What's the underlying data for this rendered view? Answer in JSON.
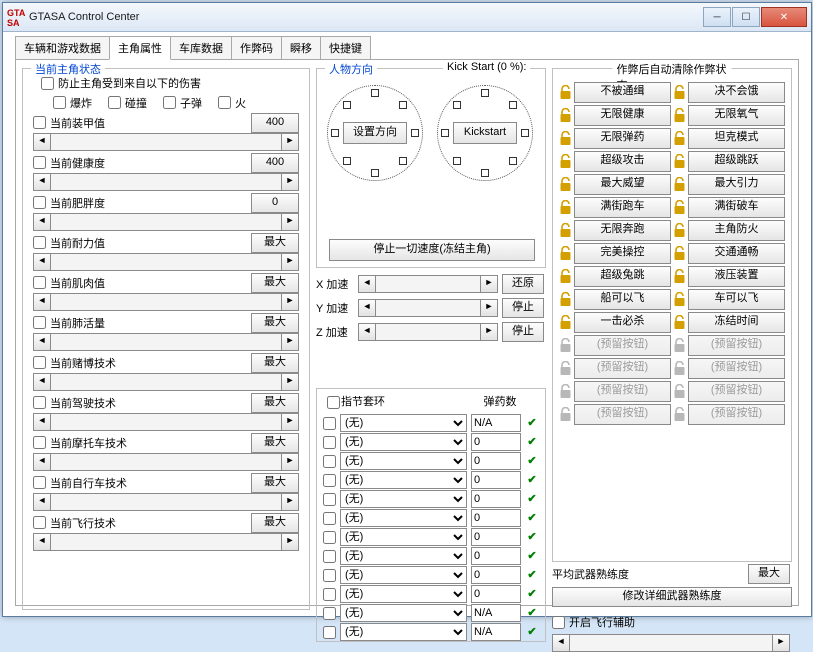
{
  "window": {
    "title": "GTASA Control Center",
    "icon_top": "GTA",
    "icon_bot": "SA"
  },
  "tabs": [
    "车辆和游戏数据",
    "主角属性",
    "车库数据",
    "作弊码",
    "瞬移",
    "快捷键"
  ],
  "active_tab": 1,
  "group_stat_title": "当前主角状态",
  "harm_checkbox_label": "防止主角受到来自以下的伤害",
  "harm_opts": [
    "爆炸",
    "碰撞",
    "子弹",
    "火"
  ],
  "stats": [
    {
      "label": "当前装甲值",
      "btn": "400"
    },
    {
      "label": "当前健康度",
      "btn": "400"
    },
    {
      "label": "当前肥胖度",
      "btn": "0"
    },
    {
      "label": "当前耐力值",
      "btn": "最大"
    },
    {
      "label": "当前肌肉值",
      "btn": "最大"
    },
    {
      "label": "当前肺活量",
      "btn": "最大"
    },
    {
      "label": "当前赌博技术",
      "btn": "最大"
    },
    {
      "label": "当前驾驶技术",
      "btn": "最大"
    },
    {
      "label": "当前摩托车技术",
      "btn": "最大"
    },
    {
      "label": "当前自行车技术",
      "btn": "最大"
    },
    {
      "label": "当前飞行技术",
      "btn": "最大"
    }
  ],
  "group_dir_title": "人物方向",
  "kickstart_label": "Kick Start (0 %):",
  "set_dir_btn": "设置方向",
  "kickstart_btn": "Kickstart",
  "stop_speed_btn": "停止一切速度(冻结主角)",
  "accel": [
    {
      "label": "X 加速",
      "btn": "还原"
    },
    {
      "label": "Y 加速",
      "btn": "停止"
    },
    {
      "label": "Z 加速",
      "btn": "停止"
    }
  ],
  "knuckle_hdr_ring": "指节套环",
  "knuckle_hdr_ammo": "弹药数",
  "knuckle_rows": [
    {
      "sel": "(无)",
      "ammo": "N/A",
      "on": true
    },
    {
      "sel": "(无)",
      "ammo": "0",
      "on": true
    },
    {
      "sel": "(无)",
      "ammo": "0",
      "on": true
    },
    {
      "sel": "(无)",
      "ammo": "0",
      "on": true
    },
    {
      "sel": "(无)",
      "ammo": "0",
      "on": true
    },
    {
      "sel": "(无)",
      "ammo": "0",
      "on": true
    },
    {
      "sel": "(无)",
      "ammo": "0",
      "on": true
    },
    {
      "sel": "(无)",
      "ammo": "0",
      "on": true
    },
    {
      "sel": "(无)",
      "ammo": "0",
      "on": true
    },
    {
      "sel": "(无)",
      "ammo": "0",
      "on": true
    },
    {
      "sel": "(无)",
      "ammo": "N/A",
      "on": true
    },
    {
      "sel": "(无)",
      "ammo": "N/A",
      "on": true
    }
  ],
  "cheat_group_title": "作弊后自动清除作弊状态",
  "cheats": [
    [
      "不被通缉",
      "决不会饿"
    ],
    [
      "无限健康",
      "无限氧气"
    ],
    [
      "无限弹药",
      "坦克模式"
    ],
    [
      "超级攻击",
      "超级跳跃"
    ],
    [
      "最大威望",
      "最大引力"
    ],
    [
      "满街跑车",
      "满街破车"
    ],
    [
      "无限奔跑",
      "主角防火"
    ],
    [
      "完美操控",
      "交通通畅"
    ],
    [
      "超级兔跳",
      "液压装置"
    ],
    [
      "船可以飞",
      "车可以飞"
    ],
    [
      "一击必杀",
      "冻结时间"
    ],
    [
      "(预留按钮)",
      "(预留按钮)"
    ],
    [
      "(预留按钮)",
      "(预留按钮)"
    ],
    [
      "(预留按钮)",
      "(预留按钮)"
    ],
    [
      "(预留按钮)",
      "(预留按钮)"
    ]
  ],
  "cheat_disabled_from_row": 11,
  "padlock_color_on": "#d4a000",
  "padlock_color_off": "#b8b8b8",
  "wpn_avg_label": "平均武器熟练度",
  "wpn_max_btn": "最大",
  "wpn_detail_btn": "修改详细武器熟练度",
  "flight_label": "开启飞行辅助",
  "none_option": "(无)"
}
